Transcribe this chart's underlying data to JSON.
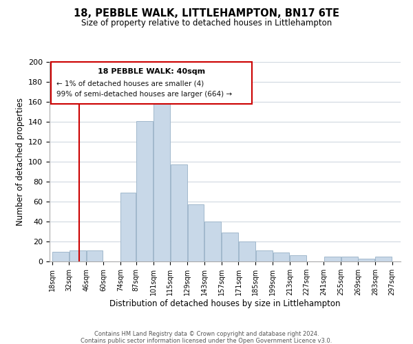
{
  "title": "18, PEBBLE WALK, LITTLEHAMPTON, BN17 6TE",
  "subtitle": "Size of property relative to detached houses in Littlehampton",
  "xlabel": "Distribution of detached houses by size in Littlehampton",
  "ylabel": "Number of detached properties",
  "bar_left_edges": [
    18,
    32,
    46,
    60,
    74,
    87,
    101,
    115,
    129,
    143,
    157,
    171,
    185,
    199,
    213,
    227,
    241,
    255,
    269,
    283
  ],
  "bar_heights": [
    10,
    11,
    11,
    0,
    69,
    141,
    160,
    97,
    57,
    40,
    29,
    20,
    11,
    9,
    6,
    0,
    5,
    5,
    3,
    5
  ],
  "bar_widths": [
    14,
    14,
    14,
    14,
    13,
    14,
    14,
    14,
    14,
    14,
    14,
    14,
    14,
    14,
    14,
    14,
    14,
    14,
    14,
    14
  ],
  "bar_color": "#c8d8e8",
  "bar_edge_color": "#a0b8cc",
  "x_tick_labels": [
    "18sqm",
    "32sqm",
    "46sqm",
    "60sqm",
    "74sqm",
    "87sqm",
    "101sqm",
    "115sqm",
    "129sqm",
    "143sqm",
    "157sqm",
    "171sqm",
    "185sqm",
    "199sqm",
    "213sqm",
    "227sqm",
    "241sqm",
    "255sqm",
    "269sqm",
    "283sqm",
    "297sqm"
  ],
  "x_tick_positions": [
    18,
    32,
    46,
    60,
    74,
    87,
    101,
    115,
    129,
    143,
    157,
    171,
    185,
    199,
    213,
    227,
    241,
    255,
    269,
    283,
    297
  ],
  "ylim": [
    0,
    200
  ],
  "yticks": [
    0,
    20,
    40,
    60,
    80,
    100,
    120,
    140,
    160,
    180,
    200
  ],
  "xlim": [
    16,
    304
  ],
  "vline_x": 40,
  "vline_color": "#cc0000",
  "annotation_title": "18 PEBBLE WALK: 40sqm",
  "annotation_line1": "← 1% of detached houses are smaller (4)",
  "annotation_line2": "99% of semi-detached houses are larger (664) →",
  "annotation_box_color": "#ffffff",
  "annotation_box_edge_color": "#cc0000",
  "footer_line1": "Contains HM Land Registry data © Crown copyright and database right 2024.",
  "footer_line2": "Contains public sector information licensed under the Open Government Licence v3.0.",
  "bg_color": "#ffffff",
  "grid_color": "#d0d8e0"
}
